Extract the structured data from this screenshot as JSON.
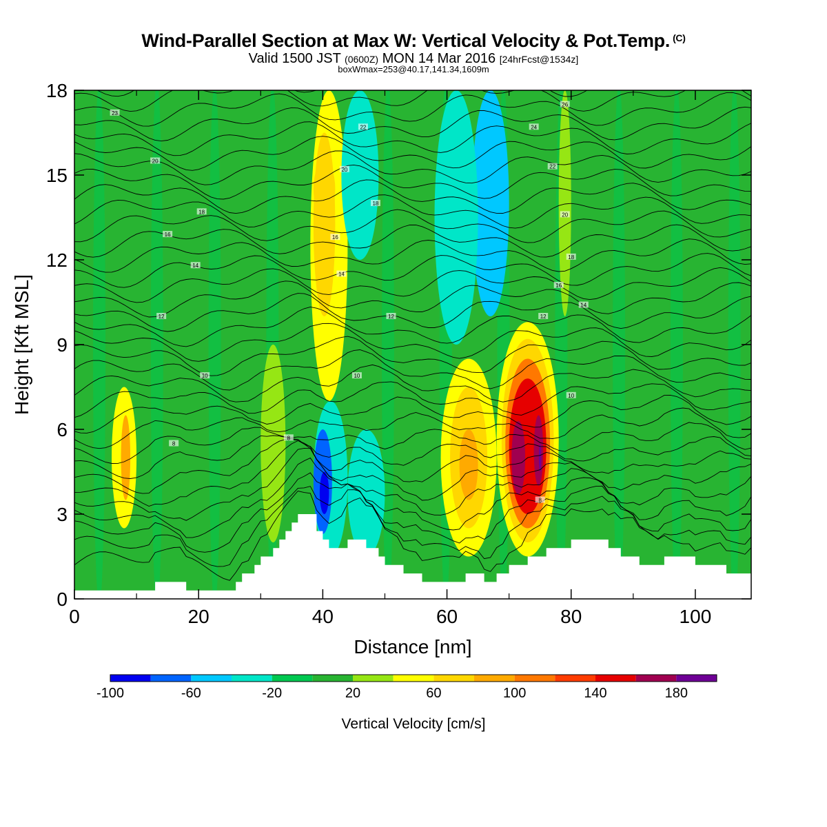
{
  "title": "Wind-Parallel Section at Max W: Vertical Velocity & Pot.Temp.",
  "copyright_mark": "(C)",
  "subtitle_main": "Valid 1500 JST",
  "subtitle_utc": "(0600Z)",
  "subtitle_date": "MON 14 Mar 2016",
  "subtitle_fcst": "[24hrFcst@1534z]",
  "box_info": "boxWmax=253@40.17,141.34,1609m",
  "chart_data": {
    "type": "heatmap",
    "xlabel": "Distance [nm]",
    "ylabel": "Height [Kft MSL]",
    "xlim": [
      0,
      109
    ],
    "ylim": [
      0,
      18
    ],
    "x_ticks": [
      "0",
      "20",
      "40",
      "60",
      "80",
      "100"
    ],
    "y_ticks": [
      "0",
      "3",
      "6",
      "9",
      "12",
      "15",
      "18"
    ],
    "colorbar": {
      "label": "Vertical Velocity [cm/s]",
      "ticks": [
        "-100",
        "-60",
        "-20",
        "20",
        "60",
        "100",
        "140",
        "180"
      ],
      "levels": [
        -100,
        -80,
        -60,
        -40,
        -20,
        0,
        20,
        40,
        60,
        80,
        100,
        120,
        140,
        160,
        180,
        200
      ],
      "colors": [
        "#0000f0",
        "#0064ff",
        "#00c8ff",
        "#00e6c8",
        "#00c850",
        "#28b432",
        "#96e614",
        "#ffff00",
        "#ffd700",
        "#ffaa00",
        "#ff7800",
        "#ff3c00",
        "#e60000",
        "#a00050",
        "#6e0096"
      ]
    },
    "background_w": 10,
    "cells": [
      {
        "x": [
          38,
          44
        ],
        "y": [
          7,
          18
        ],
        "w": 50
      },
      {
        "x": [
          38.5,
          42
        ],
        "y": [
          10,
          16.5
        ],
        "w": 68
      },
      {
        "x": [
          38.5,
          42
        ],
        "y": [
          13.5,
          15.5
        ],
        "w": 78
      },
      {
        "x": [
          43,
          49
        ],
        "y": [
          12,
          18
        ],
        "w": -25
      },
      {
        "x": [
          64,
          70
        ],
        "y": [
          10,
          18
        ],
        "w": -45
      },
      {
        "x": [
          58,
          65
        ],
        "y": [
          9,
          18
        ],
        "w": -25
      },
      {
        "x": [
          78,
          80
        ],
        "y": [
          10,
          18
        ],
        "w": 35
      },
      {
        "x": [
          6,
          10
        ],
        "y": [
          2.5,
          7.5
        ],
        "w": 55
      },
      {
        "x": [
          7.5,
          9
        ],
        "y": [
          3.5,
          6.5
        ],
        "w": 85
      },
      {
        "x": [
          30,
          34
        ],
        "y": [
          2,
          9
        ],
        "w": 35
      },
      {
        "x": [
          38.5,
          44
        ],
        "y": [
          1.5,
          7
        ],
        "w": -40
      },
      {
        "x": [
          38.5,
          41.5
        ],
        "y": [
          2.3,
          6
        ],
        "w": -75
      },
      {
        "x": [
          39.5,
          41
        ],
        "y": [
          3,
          4.5
        ],
        "w": -95
      },
      {
        "x": [
          44,
          50
        ],
        "y": [
          1.5,
          6
        ],
        "w": -30
      },
      {
        "x": [
          59,
          68
        ],
        "y": [
          1.5,
          8.5
        ],
        "w": 45
      },
      {
        "x": [
          60.5,
          66.5
        ],
        "y": [
          2.5,
          7.5
        ],
        "w": 70
      },
      {
        "x": [
          62,
          65
        ],
        "y": [
          3.5,
          6
        ],
        "w": 95
      },
      {
        "x": [
          68,
          78
        ],
        "y": [
          1.5,
          9.8
        ],
        "w": 45
      },
      {
        "x": [
          68.8,
          77.2
        ],
        "y": [
          2,
          9.2
        ],
        "w": 70
      },
      {
        "x": [
          69.4,
          76.6
        ],
        "y": [
          2.5,
          8.5
        ],
        "w": 110
      },
      {
        "x": [
          70,
          76
        ],
        "y": [
          3,
          7.8
        ],
        "w": 150
      },
      {
        "x": [
          70.4,
          72.6
        ],
        "y": [
          3.7,
          6.3
        ],
        "w": 170
      },
      {
        "x": [
          74,
          75.5
        ],
        "y": [
          4,
          6.5
        ],
        "w": 175
      },
      {
        "x": [
          74.8,
          75.2
        ],
        "y": [
          4.5,
          5.5
        ],
        "w": 190
      }
    ],
    "theta_contour_labels": [
      {
        "value": "23",
        "x": 6.5,
        "y": 17.2
      },
      {
        "value": "20",
        "x": 13,
        "y": 15.5
      },
      {
        "value": "18",
        "x": 20.5,
        "y": 13.7
      },
      {
        "value": "16",
        "x": 15,
        "y": 12.9
      },
      {
        "value": "14",
        "x": 19.5,
        "y": 11.8
      },
      {
        "value": "12",
        "x": 14,
        "y": 10
      },
      {
        "value": "10",
        "x": 21,
        "y": 7.9
      },
      {
        "value": "8",
        "x": 16,
        "y": 5.5
      },
      {
        "value": "22",
        "x": 46.5,
        "y": 16.7
      },
      {
        "value": "20",
        "x": 43.5,
        "y": 15.2
      },
      {
        "value": "18",
        "x": 48.5,
        "y": 14
      },
      {
        "value": "16",
        "x": 42,
        "y": 12.8
      },
      {
        "value": "14",
        "x": 43,
        "y": 11.5
      },
      {
        "value": "12",
        "x": 51,
        "y": 10
      },
      {
        "value": "10",
        "x": 45.5,
        "y": 7.9
      },
      {
        "value": "8",
        "x": 34.5,
        "y": 5.7
      },
      {
        "value": "26",
        "x": 79,
        "y": 17.5
      },
      {
        "value": "24",
        "x": 74,
        "y": 16.7
      },
      {
        "value": "22",
        "x": 77,
        "y": 15.3
      },
      {
        "value": "20",
        "x": 79,
        "y": 13.6
      },
      {
        "value": "18",
        "x": 80,
        "y": 12.1
      },
      {
        "value": "16",
        "x": 78,
        "y": 11.1
      },
      {
        "value": "14",
        "x": 82,
        "y": 10.4
      },
      {
        "value": "12",
        "x": 75.5,
        "y": 10
      },
      {
        "value": "10",
        "x": 80,
        "y": 7.2
      },
      {
        "value": "8",
        "x": 75,
        "y": 3.5
      }
    ],
    "terrain_height_kft": [
      0.3,
      0.3,
      0.3,
      0.3,
      0.3,
      0.3,
      0.3,
      0.3,
      0.3,
      0.3,
      0.3,
      0.3,
      0.3,
      0.6,
      0.6,
      0.6,
      0.6,
      0.6,
      0.3,
      0.3,
      0.3,
      0.3,
      0.3,
      0.3,
      0.3,
      0.3,
      0.6,
      0.9,
      0.9,
      1.2,
      1.5,
      1.5,
      1.8,
      2.1,
      2.4,
      2.7,
      3.0,
      3.0,
      3.0,
      2.4,
      2.1,
      1.8,
      1.8,
      1.8,
      2.1,
      2.1,
      2.1,
      1.8,
      1.8,
      1.5,
      1.2,
      1.2,
      1.2,
      0.9,
      0.9,
      0.9,
      0.6,
      0.6,
      0.6,
      0.6,
      0.6,
      0.6,
      0.6,
      0.9,
      0.9,
      0.9,
      0.6,
      0.6,
      0.9,
      0.9,
      1.2,
      1.2,
      1.2,
      1.5,
      1.5,
      1.5,
      1.8,
      1.8,
      1.8,
      1.8,
      2.1,
      2.1,
      2.1,
      2.1,
      2.1,
      2.1,
      1.8,
      1.8,
      1.5,
      1.5,
      1.5,
      1.2,
      1.2,
      1.2,
      1.2,
      1.5,
      1.5,
      1.5,
      1.5,
      1.5,
      1.2,
      1.2,
      1.2,
      1.2,
      1.2,
      0.9,
      0.9,
      0.9,
      0.9,
      1.2
    ]
  }
}
